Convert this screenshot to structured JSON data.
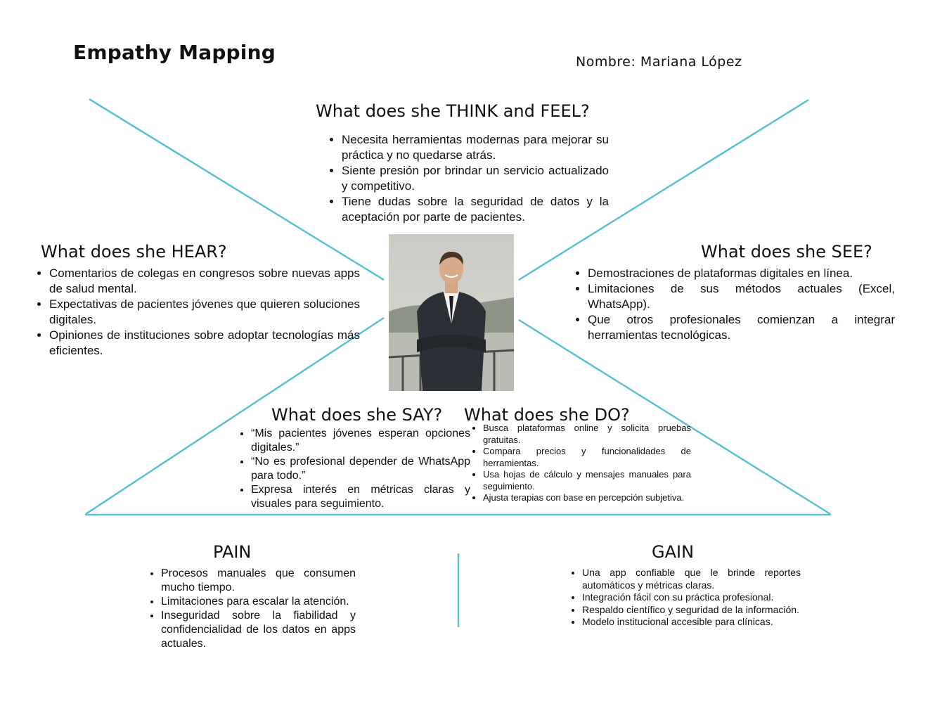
{
  "title": "Empathy Mapping",
  "name_label": "Nombre: Mariana López",
  "colors": {
    "line": "#5bbfd8",
    "text": "#111111",
    "background": "#ffffff"
  },
  "think_feel": {
    "heading": "What does she THINK and FEEL?",
    "items": [
      "Necesita herramientas modernas para mejorar su práctica y no quedarse atrás.",
      "Siente presión por brindar un servicio actualizado y competitivo.",
      "Tiene dudas sobre la seguridad de datos y la aceptación por parte de pacientes."
    ]
  },
  "hear": {
    "heading": "What does she HEAR?",
    "items": [
      "Comentarios de colegas en congresos sobre nuevas apps de salud mental.",
      "Expectativas de pacientes jóvenes que quieren soluciones digitales.",
      "Opiniones de instituciones sobre adoptar tecnologías más eficientes."
    ]
  },
  "see": {
    "heading": "What does she SEE?",
    "items": [
      "Demostraciones de plataformas digitales en línea.",
      "Limitaciones de sus métodos actuales (Excel, WhatsApp).",
      "Que otros profesionales comienzan a integrar herramientas tecnológicas."
    ]
  },
  "say": {
    "heading": "What does she SAY?",
    "items": [
      "“Mis pacientes jóvenes esperan opciones digitales.”",
      "“No es profesional depender de WhatsApp para todo.”",
      "Expresa interés en métricas claras y visuales para seguimiento."
    ]
  },
  "do": {
    "heading": "What does she DO?",
    "items": [
      "Busca plataformas online y solicita pruebas gratuitas.",
      "Compara precios y funcionalidades de herramientas.",
      "Usa hojas de cálculo y mensajes manuales para seguimiento.",
      "Ajusta terapias con base en percepción subjetiva."
    ]
  },
  "pain": {
    "heading": "PAIN",
    "items": [
      "Procesos manuales que consumen mucho tiempo.",
      "Limitaciones para escalar la atención.",
      "Inseguridad sobre la fiabilidad y confidencialidad de los datos en apps actuales."
    ]
  },
  "gain": {
    "heading": "GAIN",
    "items": [
      "Una app confiable que le brinde reportes automáticos y métricas claras.",
      "Integración fácil con su práctica profesional.",
      "Respaldo científico y seguridad de la información.",
      "Modelo institucional accesible para clínicas."
    ]
  }
}
